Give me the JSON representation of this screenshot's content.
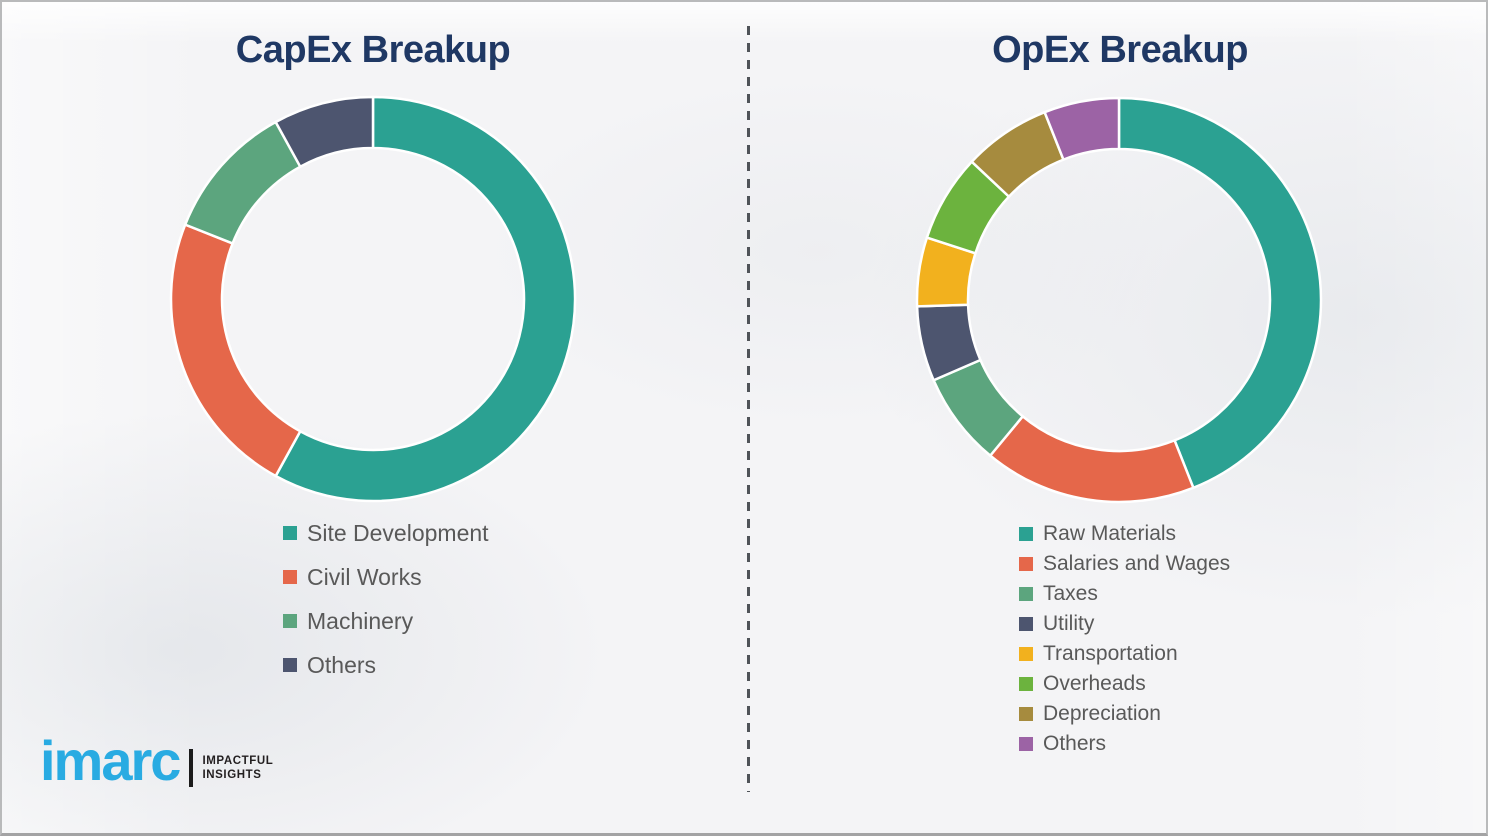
{
  "page": {
    "background": "#f4f4f6",
    "border_color": "#b9babb",
    "divider_color": "#4f5358",
    "title_color": "#1f3864",
    "legend_text_color": "#595959"
  },
  "chart_data": [
    {
      "type": "pie",
      "subtype": "donut",
      "title": "CapEx Breakup",
      "legend_position": "below-left",
      "segments": [
        {
          "label": "Site Development",
          "value": 58,
          "color": "#2ba192"
        },
        {
          "label": "Civil Works",
          "value": 23,
          "color": "#e5674a"
        },
        {
          "label": "Machinery",
          "value": 11,
          "color": "#5ca57e"
        },
        {
          "label": "Others",
          "value": 8,
          "color": "#4d556f"
        }
      ]
    },
    {
      "type": "pie",
      "subtype": "donut",
      "title": "OpEx Breakup",
      "legend_position": "below-left",
      "segments": [
        {
          "label": "Raw Materials",
          "value": 44,
          "color": "#2ba192"
        },
        {
          "label": "Salaries and Wages",
          "value": 17,
          "color": "#e5674a"
        },
        {
          "label": "Taxes",
          "value": 7.5,
          "color": "#5ca57e"
        },
        {
          "label": "Utility",
          "value": 6,
          "color": "#4d556f"
        },
        {
          "label": "Transportation",
          "value": 5.5,
          "color": "#f2b11e"
        },
        {
          "label": "Overheads",
          "value": 7,
          "color": "#6cb33e"
        },
        {
          "label": "Depreciation",
          "value": 7,
          "color": "#a68b3e"
        },
        {
          "label": "Others",
          "value": 6,
          "color": "#9c63a5"
        }
      ]
    }
  ],
  "logo": {
    "brand": "imarc",
    "brand_color": "#29abe2",
    "tagline_line1": "IMPACTFUL",
    "tagline_line2": "INSIGHTS"
  }
}
